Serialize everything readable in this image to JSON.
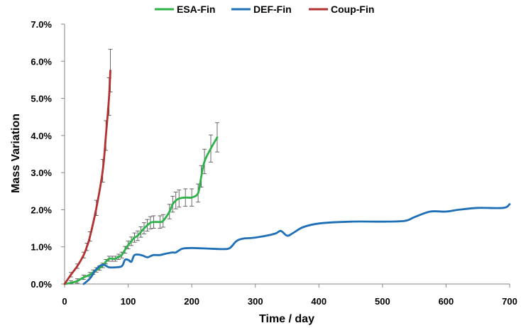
{
  "chart_data": {
    "type": "line",
    "xlabel": "Time / day",
    "ylabel": "Mass Variation",
    "xlim": [
      0,
      700
    ],
    "ylim": [
      0,
      0.07
    ],
    "x_ticks": [
      "0",
      "100",
      "200",
      "300",
      "400",
      "500",
      "600",
      "700"
    ],
    "y_ticks": [
      "0.0%",
      "1.0%",
      "2.0%",
      "3.0%",
      "4.0%",
      "5.0%",
      "6.0%",
      "7.0%"
    ],
    "grid": false,
    "legend_position": "top",
    "series": [
      {
        "name": "ESA-Fin",
        "color": "#2eb34a",
        "error_bars": true,
        "points": [
          [
            0,
            0.0
          ],
          [
            10,
            0.0003
          ],
          [
            20,
            0.0008
          ],
          [
            30,
            0.0018
          ],
          [
            40,
            0.0025
          ],
          [
            45,
            0.0032
          ],
          [
            50,
            0.0038
          ],
          [
            55,
            0.0043
          ],
          [
            60,
            0.005
          ],
          [
            65,
            0.006
          ],
          [
            70,
            0.0068
          ],
          [
            75,
            0.0068
          ],
          [
            80,
            0.0068
          ],
          [
            85,
            0.0073
          ],
          [
            90,
            0.0078
          ],
          [
            95,
            0.0092
          ],
          [
            100,
            0.0105
          ],
          [
            105,
            0.0115
          ],
          [
            110,
            0.0125
          ],
          [
            115,
            0.013
          ],
          [
            120,
            0.014
          ],
          [
            125,
            0.015
          ],
          [
            130,
            0.0158
          ],
          [
            135,
            0.0165
          ],
          [
            140,
            0.0167
          ],
          [
            150,
            0.0167
          ],
          [
            155,
            0.017
          ],
          [
            165,
            0.0195
          ],
          [
            170,
            0.0215
          ],
          [
            175,
            0.0225
          ],
          [
            180,
            0.023
          ],
          [
            190,
            0.0233
          ],
          [
            200,
            0.0233
          ],
          [
            210,
            0.0245
          ],
          [
            215,
            0.029
          ],
          [
            220,
            0.033
          ],
          [
            230,
            0.0365
          ],
          [
            240,
            0.0395
          ]
        ]
      },
      {
        "name": "DEF-Fin",
        "color": "#1f6fb6",
        "error_bars": false,
        "points": [
          [
            30,
            0.0
          ],
          [
            40,
            0.0015
          ],
          [
            50,
            0.004
          ],
          [
            60,
            0.0052
          ],
          [
            70,
            0.0045
          ],
          [
            80,
            0.0045
          ],
          [
            90,
            0.0048
          ],
          [
            95,
            0.0065
          ],
          [
            100,
            0.0065
          ],
          [
            105,
            0.006
          ],
          [
            110,
            0.0078
          ],
          [
            120,
            0.0078
          ],
          [
            130,
            0.0072
          ],
          [
            135,
            0.0075
          ],
          [
            140,
            0.0078
          ],
          [
            150,
            0.0078
          ],
          [
            160,
            0.0082
          ],
          [
            170,
            0.0085
          ],
          [
            175,
            0.0085
          ],
          [
            185,
            0.0095
          ],
          [
            200,
            0.0097
          ],
          [
            230,
            0.0095
          ],
          [
            250,
            0.0094
          ],
          [
            260,
            0.0097
          ],
          [
            270,
            0.0115
          ],
          [
            280,
            0.0122
          ],
          [
            300,
            0.0125
          ],
          [
            330,
            0.0135
          ],
          [
            340,
            0.0143
          ],
          [
            350,
            0.013
          ],
          [
            360,
            0.0138
          ],
          [
            375,
            0.0153
          ],
          [
            400,
            0.0163
          ],
          [
            450,
            0.0168
          ],
          [
            500,
            0.0168
          ],
          [
            535,
            0.017
          ],
          [
            550,
            0.018
          ],
          [
            575,
            0.0195
          ],
          [
            600,
            0.0195
          ],
          [
            620,
            0.02
          ],
          [
            650,
            0.0205
          ],
          [
            690,
            0.0205
          ],
          [
            700,
            0.0215
          ]
        ]
      },
      {
        "name": "Coup-Fin",
        "color": "#b23232",
        "error_bars": true,
        "points": [
          [
            0,
            0.0
          ],
          [
            10,
            0.0025
          ],
          [
            20,
            0.0048
          ],
          [
            30,
            0.0078
          ],
          [
            35,
            0.01
          ],
          [
            40,
            0.0128
          ],
          [
            50,
            0.0205
          ],
          [
            60,
            0.0305
          ],
          [
            65,
            0.04
          ],
          [
            70,
            0.0505
          ],
          [
            72,
            0.0575
          ]
        ]
      }
    ]
  }
}
